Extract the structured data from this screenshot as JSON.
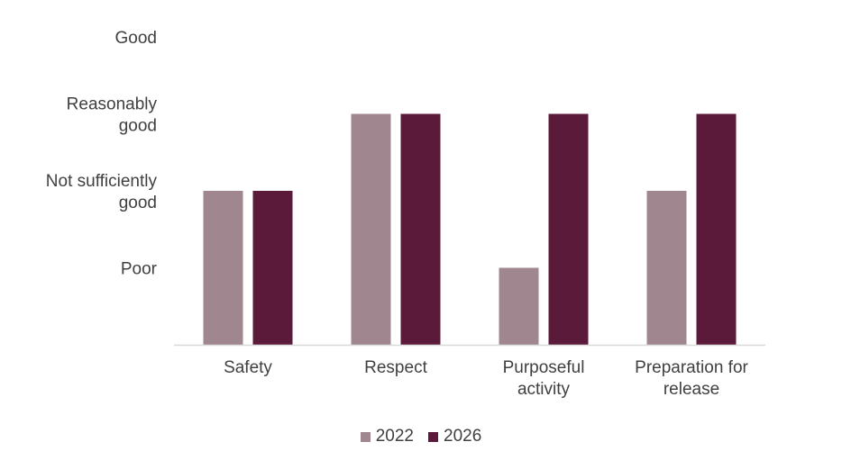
{
  "chart_data": {
    "type": "bar",
    "categories": [
      [
        "Safety"
      ],
      [
        "Respect"
      ],
      [
        "Purposeful",
        "activity"
      ],
      [
        "Preparation for",
        "release"
      ]
    ],
    "y_tick_labels": [
      [
        "Poor"
      ],
      [
        "Not sufficiently",
        "good"
      ],
      [
        "Reasonably",
        "good"
      ],
      [
        "Good"
      ]
    ],
    "ylim": [
      0,
      4
    ],
    "series": [
      {
        "name": "2022",
        "color": "#A0868E",
        "values": [
          2,
          3,
          1,
          2
        ]
      },
      {
        "name": "2026",
        "color": "#5C1A3A",
        "values": [
          2,
          3,
          3,
          3
        ]
      }
    ],
    "legend_position": "bottom",
    "grid": false
  }
}
